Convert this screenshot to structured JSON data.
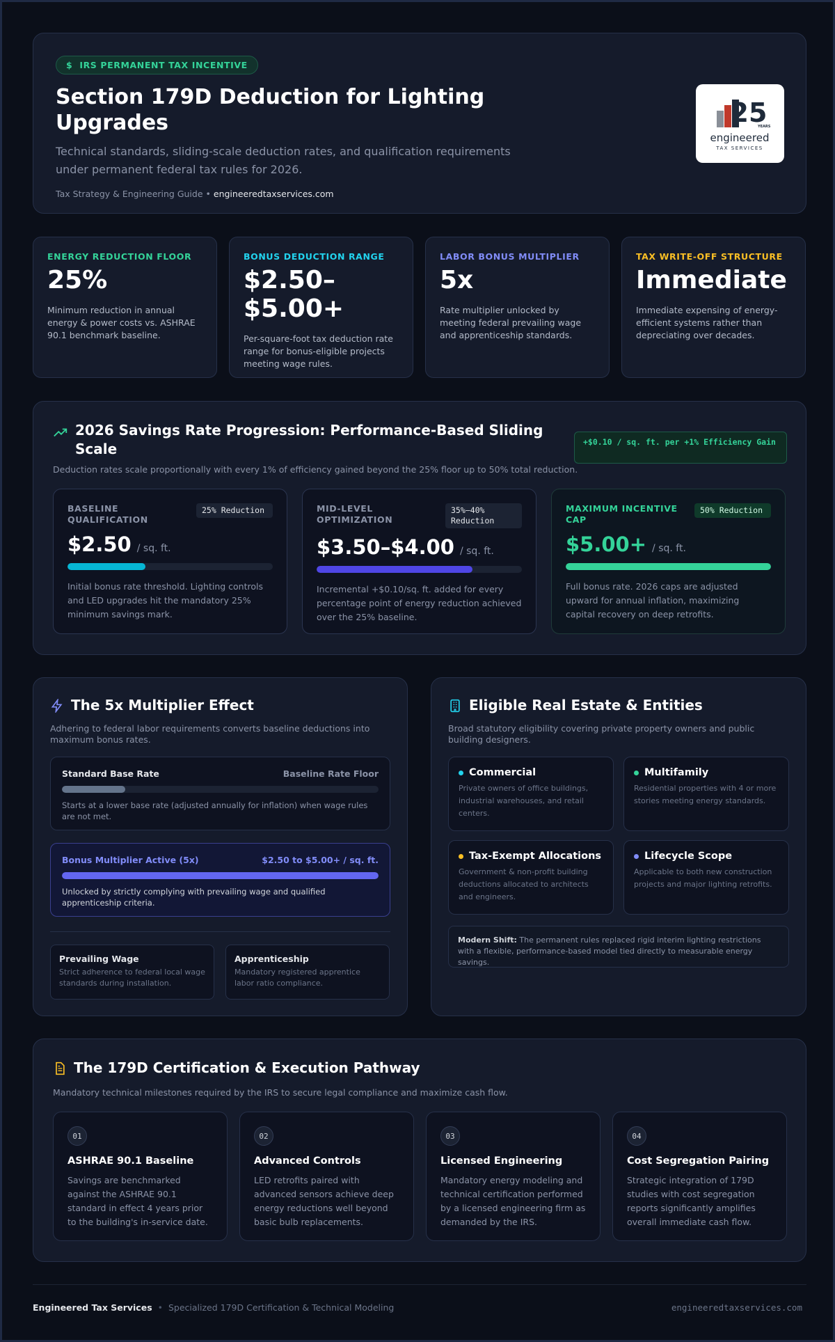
{
  "header": {
    "badge_icon": "$",
    "badge": "IRS PERMANENT TAX INCENTIVE",
    "title": "Section 179D Deduction for Lighting Upgrades",
    "subtitle": "Technical standards, sliding-scale deduction rates, and qualification requirements under permanent federal tax rules for 2026.",
    "meta_label": "Tax Strategy & Engineering Guide",
    "meta_separator": "•",
    "website": "engineeredtaxservices.com",
    "logo": {
      "number": "25",
      "years": "YEARS",
      "name": "engineered",
      "tagline": "TAX SERVICES"
    }
  },
  "stats": [
    {
      "label": "ENERGY REDUCTION FLOOR",
      "value": "25%",
      "description": "Minimum reduction in annual energy & power costs vs. ASHRAE 90.1 benchmark baseline."
    },
    {
      "label": "BONUS DEDUCTION RANGE",
      "value": "$2.50–$5.00+",
      "description": "Per-square-foot tax deduction rate range for bonus-eligible projects meeting wage rules."
    },
    {
      "label": "LABOR BONUS MULTIPLIER",
      "value": "5x",
      "description": "Rate multiplier unlocked by meeting federal prevailing wage and apprenticeship standards."
    },
    {
      "label": "TAX WRITE-OFF STRUCTURE",
      "value": "Immediate",
      "description": "Immediate expensing of energy-efficient systems rather than depreciating over decades."
    }
  ],
  "savings": {
    "title": "2026 Savings Rate Progression: Performance-Based Sliding Scale",
    "subtitle": "Deduction rates scale proportionally with every 1% of efficiency gained beyond the 25% floor up to 50% total reduction.",
    "tag": "+$0.10 / sq. ft. per +1% Efficiency Gain",
    "tiers": [
      {
        "label": "BASELINE QUALIFICATION",
        "badge": "25% Reduction",
        "rate": "$2.50",
        "unit": "/ sq. ft.",
        "description": "Initial bonus rate threshold. Lighting controls and LED upgrades hit the mandatory 25% minimum savings mark."
      },
      {
        "label": "MID-LEVEL OPTIMIZATION",
        "badge": "35%–40% Reduction",
        "rate": "$3.50–$4.00",
        "unit": "/ sq. ft.",
        "description": "Incremental +$0.10/sq. ft. added for every percentage point of energy reduction achieved over the 25% baseline."
      },
      {
        "label": "MAXIMUM INCENTIVE CAP",
        "badge": "50% Reduction",
        "rate": "$5.00+",
        "unit": "/ sq. ft.",
        "description": "Full bonus rate. 2026 caps are adjusted upward for annual inflation, maximizing capital recovery on deep retrofits."
      }
    ]
  },
  "multiplier": {
    "title": "The 5x Multiplier Effect",
    "subtitle": "Adhering to federal labor requirements converts baseline deductions into maximum bonus rates.",
    "rows": [
      {
        "label": "Standard Base Rate",
        "value": "Baseline Rate Floor",
        "description": "Starts at a lower base rate (adjusted annually for inflation) when wage rules are not met."
      },
      {
        "label": "Bonus Multiplier Active (5x)",
        "value": "$2.50 to $5.00+ / sq. ft.",
        "description": "Unlocked by strictly complying with prevailing wage and qualified apprenticeship criteria."
      }
    ],
    "requirements": [
      {
        "title": "Prevailing Wage",
        "description": "Strict adherence to federal local wage standards during installation."
      },
      {
        "title": "Apprenticeship",
        "description": "Mandatory registered apprentice labor ratio compliance."
      }
    ]
  },
  "eligibility": {
    "title": "Eligible Real Estate & Entities",
    "subtitle": "Broad statutory eligibility covering private property owners and public building designers.",
    "items": [
      {
        "title": "Commercial",
        "description": "Private owners of office buildings, industrial warehouses, and retail centers."
      },
      {
        "title": "Multifamily",
        "description": "Residential properties with 4 or more stories meeting energy standards."
      },
      {
        "title": "Tax-Exempt Allocations",
        "description": "Government & non-profit building deductions allocated to architects and engineers."
      },
      {
        "title": "Lifecycle Scope",
        "description": "Applicable to both new construction projects and major lighting retrofits."
      }
    ],
    "note_label": "Modern Shift:",
    "note": "The permanent rules replaced rigid interim lighting restrictions with a flexible, performance-based model tied directly to measurable energy savings."
  },
  "pathway": {
    "title": "The 179D Certification & Execution Pathway",
    "subtitle": "Mandatory technical milestones required by the IRS to secure legal compliance and maximize cash flow.",
    "steps": [
      {
        "number": "01",
        "title": "ASHRAE 90.1 Baseline",
        "description": "Savings are benchmarked against the ASHRAE 90.1 standard in effect 4 years prior to the building's in-service date."
      },
      {
        "number": "02",
        "title": "Advanced Controls",
        "description": "LED retrofits paired with advanced sensors achieve deep energy reductions well beyond basic bulb replacements."
      },
      {
        "number": "03",
        "title": "Licensed Engineering",
        "description": "Mandatory energy modeling and technical certification performed by a licensed engineering firm as demanded by the IRS."
      },
      {
        "number": "04",
        "title": "Cost Segregation Pairing",
        "description": "Strategic integration of 179D studies with cost segregation reports significantly amplifies overall immediate cash flow."
      }
    ]
  },
  "footer": {
    "company": "Engineered Tax Services",
    "separator": "•",
    "tagline": "Specialized 179D Certification & Technical Modeling",
    "website": "engineeredtaxservices.com"
  }
}
